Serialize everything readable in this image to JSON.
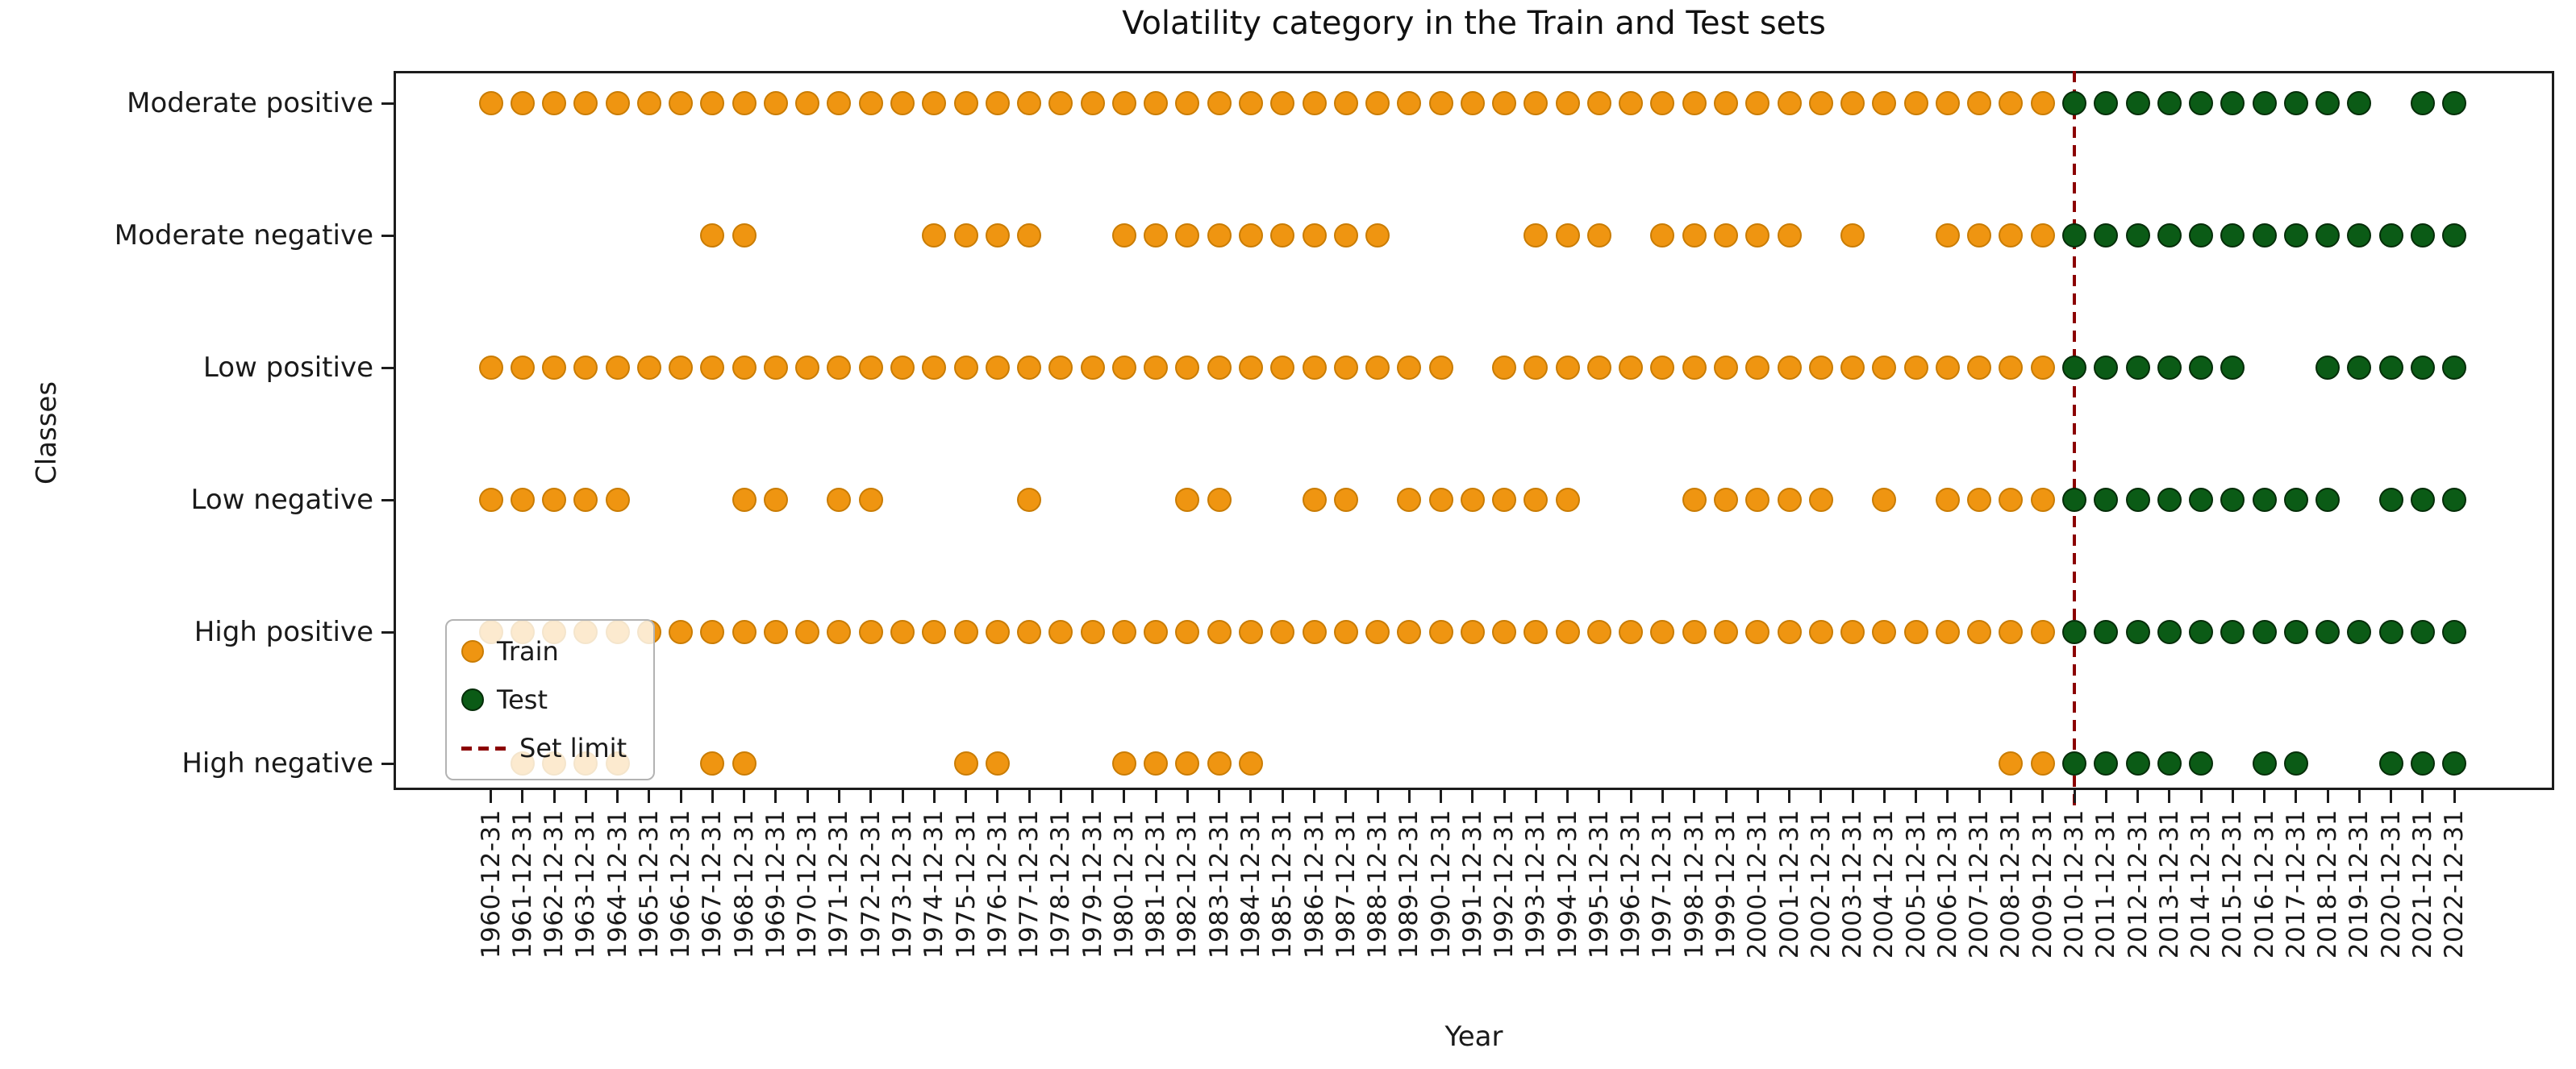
{
  "title": "Volatility category in the Train and Test sets",
  "x_axis_label": "Year",
  "y_axis_label": "Classes",
  "legend": {
    "train_label": "Train",
    "test_label": "Test",
    "limit_label": "Set limit"
  },
  "colors": {
    "train": "#ef9511",
    "test": "#0b5b16",
    "set_limit": "#8b0000"
  },
  "chart_data": {
    "type": "scatter",
    "title": "Volatility category in the Train and Test sets",
    "xlabel": "Year",
    "ylabel": "Classes",
    "legend_position": "lower left",
    "grid": false,
    "categories": [
      "Moderate positive",
      "Moderate negative",
      "Low positive",
      "Low negative",
      "High positive",
      "High negative"
    ],
    "x_tick_labels": [
      "1960-12-31",
      "1961-12-31",
      "1962-12-31",
      "1963-12-31",
      "1964-12-31",
      "1965-12-31",
      "1966-12-31",
      "1967-12-31",
      "1968-12-31",
      "1969-12-31",
      "1970-12-31",
      "1971-12-31",
      "1972-12-31",
      "1973-12-31",
      "1974-12-31",
      "1975-12-31",
      "1976-12-31",
      "1977-12-31",
      "1978-12-31",
      "1979-12-31",
      "1980-12-31",
      "1981-12-31",
      "1982-12-31",
      "1983-12-31",
      "1984-12-31",
      "1985-12-31",
      "1986-12-31",
      "1987-12-31",
      "1988-12-31",
      "1989-12-31",
      "1990-12-31",
      "1991-12-31",
      "1992-12-31",
      "1993-12-31",
      "1994-12-31",
      "1995-12-31",
      "1996-12-31",
      "1997-12-31",
      "1998-12-31",
      "1999-12-31",
      "2000-12-31",
      "2001-12-31",
      "2002-12-31",
      "2003-12-31",
      "2004-12-31",
      "2005-12-31",
      "2006-12-31",
      "2007-12-31",
      "2008-12-31",
      "2009-12-31",
      "2010-12-31",
      "2011-12-31",
      "2012-12-31",
      "2013-12-31",
      "2014-12-31",
      "2015-12-31",
      "2016-12-31",
      "2017-12-31",
      "2018-12-31",
      "2019-12-31",
      "2020-12-31",
      "2021-12-31",
      "2022-12-31"
    ],
    "first_year": 1960,
    "last_year": 2022,
    "set_limit": {
      "label": "Set limit",
      "x": "2010-12-31",
      "year": 2010,
      "style": "dashed",
      "color": "#8b0000"
    },
    "series": [
      {
        "name": "Train",
        "color": "#ef9511",
        "year_ranges": {
          "Moderate positive": [
            [
              1960,
              2009
            ]
          ],
          "Moderate negative": [
            [
              1967,
              1968
            ],
            [
              1974,
              1977
            ],
            [
              1980,
              1988
            ],
            [
              1993,
              1995
            ],
            [
              1997,
              2001
            ],
            [
              2003,
              2003
            ],
            [
              2006,
              2009
            ]
          ],
          "Low positive": [
            [
              1960,
              1990
            ],
            [
              1992,
              2009
            ]
          ],
          "Low negative": [
            [
              1960,
              1964
            ],
            [
              1968,
              1969
            ],
            [
              1971,
              1972
            ],
            [
              1977,
              1977
            ],
            [
              1982,
              1983
            ],
            [
              1986,
              1987
            ],
            [
              1989,
              1994
            ],
            [
              1998,
              2002
            ],
            [
              2004,
              2004
            ],
            [
              2006,
              2009
            ]
          ],
          "High positive": [
            [
              1960,
              2009
            ]
          ],
          "High negative": [
            [
              1961,
              1964
            ],
            [
              1967,
              1968
            ],
            [
              1975,
              1976
            ],
            [
              1980,
              1984
            ],
            [
              2008,
              2009
            ]
          ]
        }
      },
      {
        "name": "Test",
        "color": "#0b5b16",
        "year_ranges": {
          "Moderate positive": [
            [
              2010,
              2019
            ],
            [
              2021,
              2022
            ]
          ],
          "Moderate negative": [
            [
              2010,
              2022
            ]
          ],
          "Low positive": [
            [
              2010,
              2015
            ],
            [
              2018,
              2022
            ]
          ],
          "Low negative": [
            [
              2010,
              2018
            ],
            [
              2020,
              2022
            ]
          ],
          "High positive": [
            [
              2010,
              2022
            ]
          ],
          "High negative": [
            [
              2010,
              2014
            ],
            [
              2016,
              2017
            ],
            [
              2020,
              2022
            ]
          ]
        }
      }
    ]
  }
}
